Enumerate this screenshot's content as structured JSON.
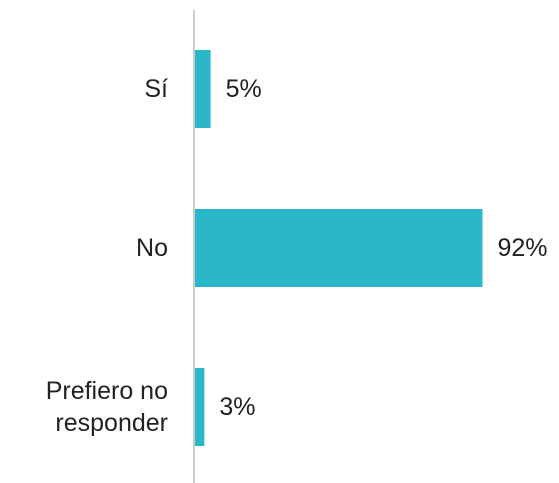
{
  "chart_data": {
    "type": "bar",
    "orientation": "horizontal",
    "categories": [
      "Sí",
      "No",
      "Prefiero no responder"
    ],
    "category_label_lines": [
      [
        "Sí"
      ],
      [
        "No"
      ],
      [
        "Prefiero no",
        "responder"
      ]
    ],
    "values": [
      5,
      92,
      3
    ],
    "value_labels": [
      "5%",
      "92%",
      "3%"
    ],
    "unit": "%",
    "xlim": [
      0,
      100
    ],
    "grid": false,
    "legend": "none",
    "colors": {
      "bar": "#2ab8c8",
      "axis": "#cccccc",
      "text": "#222222"
    }
  }
}
